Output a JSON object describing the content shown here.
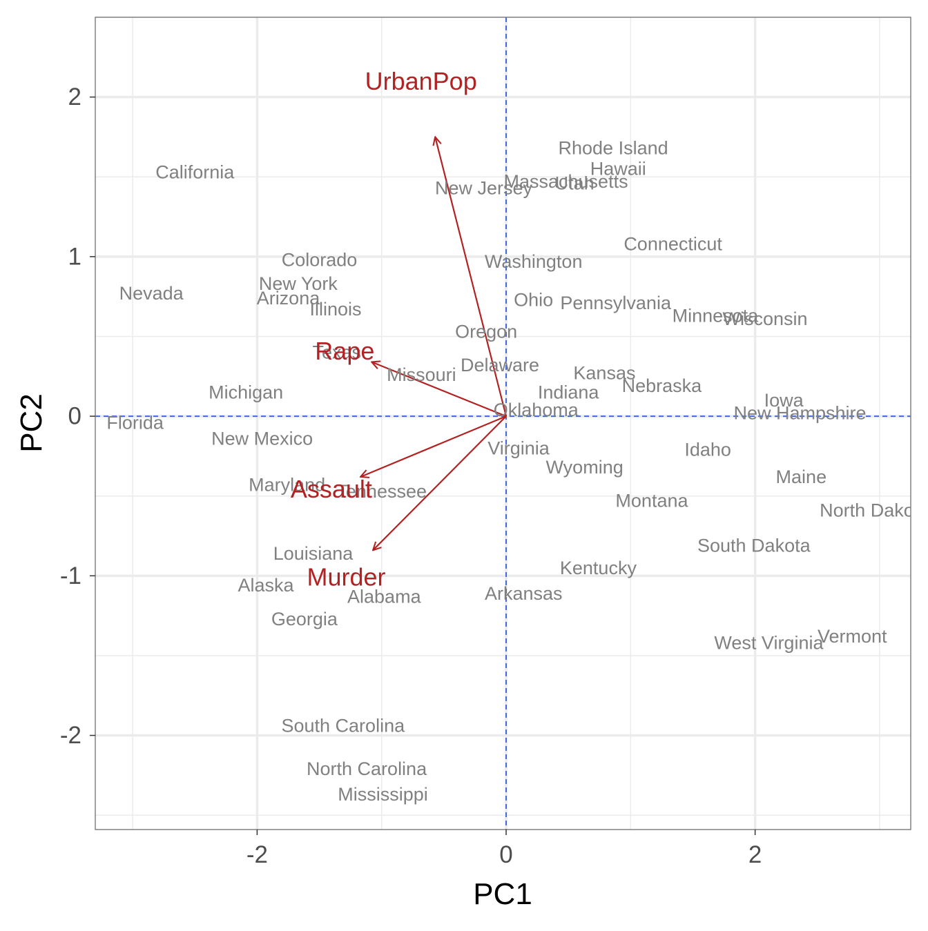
{
  "chart_data": {
    "type": "scatter",
    "subtype": "pca-biplot",
    "title": "",
    "xlabel": "PC1",
    "ylabel": "PC2",
    "xlim": [
      -3.3,
      3.25
    ],
    "ylim": [
      -2.59,
      2.5
    ],
    "x_ticks": [
      -2,
      0,
      2
    ],
    "y_ticks": [
      -2,
      -1,
      0,
      1,
      2
    ],
    "x_tick_labels": [
      "-2",
      "0",
      "2"
    ],
    "y_tick_labels": [
      "-2",
      "-1",
      "0",
      "1",
      "2"
    ],
    "grid": true,
    "reference_lines": {
      "x": 0,
      "y": 0,
      "style": "dashed",
      "color": "#4169e1"
    },
    "colors": {
      "points": "#808080",
      "loadings": "#b22222",
      "reference": "#4169e1",
      "panel_border": "#808080",
      "grid": "#ebebeb"
    },
    "points": [
      {
        "label": "Alabama",
        "x": -0.98,
        "y": -1.13
      },
      {
        "label": "Alaska",
        "x": -1.93,
        "y": -1.06
      },
      {
        "label": "Arizona",
        "x": -1.75,
        "y": 0.74
      },
      {
        "label": "Arkansas",
        "x": 0.14,
        "y": -1.11
      },
      {
        "label": "California",
        "x": -2.5,
        "y": 1.53
      },
      {
        "label": "Colorado",
        "x": -1.5,
        "y": 0.98
      },
      {
        "label": "Connecticut",
        "x": 1.34,
        "y": 1.08
      },
      {
        "label": "Delaware",
        "x": -0.05,
        "y": 0.32
      },
      {
        "label": "Florida",
        "x": -2.98,
        "y": -0.04
      },
      {
        "label": "Georgia",
        "x": -1.62,
        "y": -1.27
      },
      {
        "label": "Hawaii",
        "x": 0.9,
        "y": 1.55
      },
      {
        "label": "Idaho",
        "x": 1.62,
        "y": -0.21
      },
      {
        "label": "Illinois",
        "x": -1.37,
        "y": 0.67
      },
      {
        "label": "Indiana",
        "x": 0.5,
        "y": 0.15
      },
      {
        "label": "Iowa",
        "x": 2.23,
        "y": 0.1
      },
      {
        "label": "Kansas",
        "x": 0.79,
        "y": 0.27
      },
      {
        "label": "Kentucky",
        "x": 0.74,
        "y": -0.95
      },
      {
        "label": "Louisiana",
        "x": -1.55,
        "y": -0.86
      },
      {
        "label": "Maine",
        "x": 2.37,
        "y": -0.38
      },
      {
        "label": "Maryland",
        "x": -1.76,
        "y": -0.43
      },
      {
        "label": "Massachusetts",
        "x": 0.48,
        "y": 1.47
      },
      {
        "label": "Michigan",
        "x": -2.09,
        "y": 0.15
      },
      {
        "label": "Minnesota",
        "x": 1.68,
        "y": 0.63
      },
      {
        "label": "Mississippi",
        "x": -0.99,
        "y": -2.37
      },
      {
        "label": "Missouri",
        "x": -0.68,
        "y": 0.26
      },
      {
        "label": "Montana",
        "x": 1.17,
        "y": -0.53
      },
      {
        "label": "Nebraska",
        "x": 1.25,
        "y": 0.19
      },
      {
        "label": "Nevada",
        "x": -2.85,
        "y": 0.77
      },
      {
        "label": "New Hampshire",
        "x": 2.36,
        "y": 0.02
      },
      {
        "label": "New Jersey",
        "x": -0.18,
        "y": 1.43
      },
      {
        "label": "New Mexico",
        "x": -1.96,
        "y": -0.14
      },
      {
        "label": "New York",
        "x": -1.67,
        "y": 0.83
      },
      {
        "label": "North Carolina",
        "x": -1.12,
        "y": -2.21
      },
      {
        "label": "North Dakota",
        "x": 2.96,
        "y": -0.59
      },
      {
        "label": "Ohio",
        "x": 0.22,
        "y": 0.73
      },
      {
        "label": "Oklahoma",
        "x": 0.24,
        "y": 0.04
      },
      {
        "label": "Oregon",
        "x": -0.16,
        "y": 0.53
      },
      {
        "label": "Pennsylvania",
        "x": 0.88,
        "y": 0.71
      },
      {
        "label": "Rhode Island",
        "x": 0.86,
        "y": 1.68
      },
      {
        "label": "South Carolina",
        "x": -1.31,
        "y": -1.94
      },
      {
        "label": "South Dakota",
        "x": 1.99,
        "y": -0.81
      },
      {
        "label": "Tennessee",
        "x": -1.0,
        "y": -0.47
      },
      {
        "label": "Texas",
        "x": -1.36,
        "y": 0.4
      },
      {
        "label": "Utah",
        "x": 0.55,
        "y": 1.46
      },
      {
        "label": "Vermont",
        "x": 2.78,
        "y": -1.38
      },
      {
        "label": "Virginia",
        "x": 0.1,
        "y": -0.2
      },
      {
        "label": "Washington",
        "x": 0.22,
        "y": 0.97
      },
      {
        "label": "West Virginia",
        "x": 2.11,
        "y": -1.42
      },
      {
        "label": "Wisconsin",
        "x": 2.08,
        "y": 0.61
      },
      {
        "label": "Wyoming",
        "x": 0.63,
        "y": -0.32
      }
    ],
    "loadings": [
      {
        "label": "Murder",
        "x": -1.07,
        "y": -0.84
      },
      {
        "label": "Assault",
        "x": -1.17,
        "y": -0.38
      },
      {
        "label": "UrbanPop",
        "x": -0.57,
        "y": 1.75
      },
      {
        "label": "Rape",
        "x": -1.08,
        "y": 0.34
      }
    ]
  }
}
